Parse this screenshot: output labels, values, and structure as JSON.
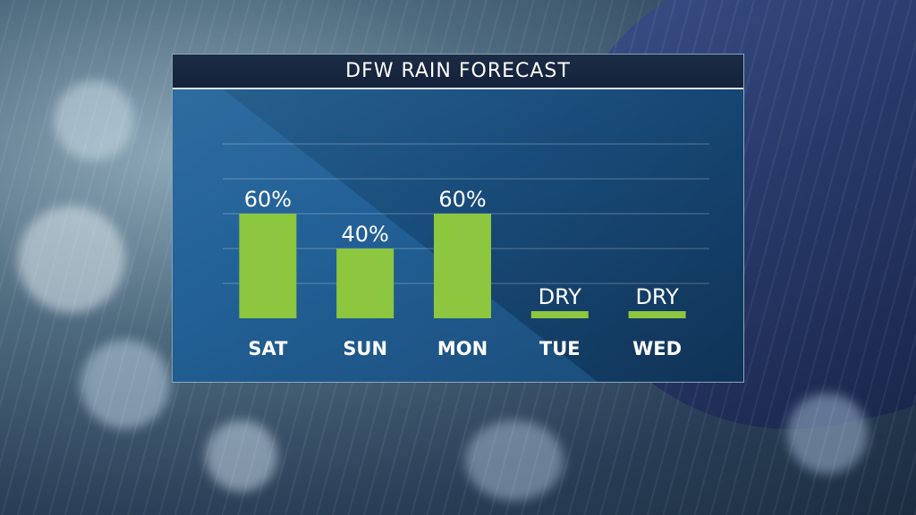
{
  "chart_data": {
    "type": "bar",
    "title": "DFW RAIN FORECAST",
    "categories": [
      "SAT",
      "SUN",
      "MON",
      "TUE",
      "WED"
    ],
    "values": [
      60,
      40,
      60,
      0,
      0
    ],
    "data_labels": [
      "60%",
      "40%",
      "60%",
      "DRY",
      "DRY"
    ],
    "ylim": [
      0,
      100
    ],
    "grid": true,
    "bar_color": "#8dc63f",
    "background_color": "#1a4f7e",
    "title_bar_color": "#14223a"
  }
}
